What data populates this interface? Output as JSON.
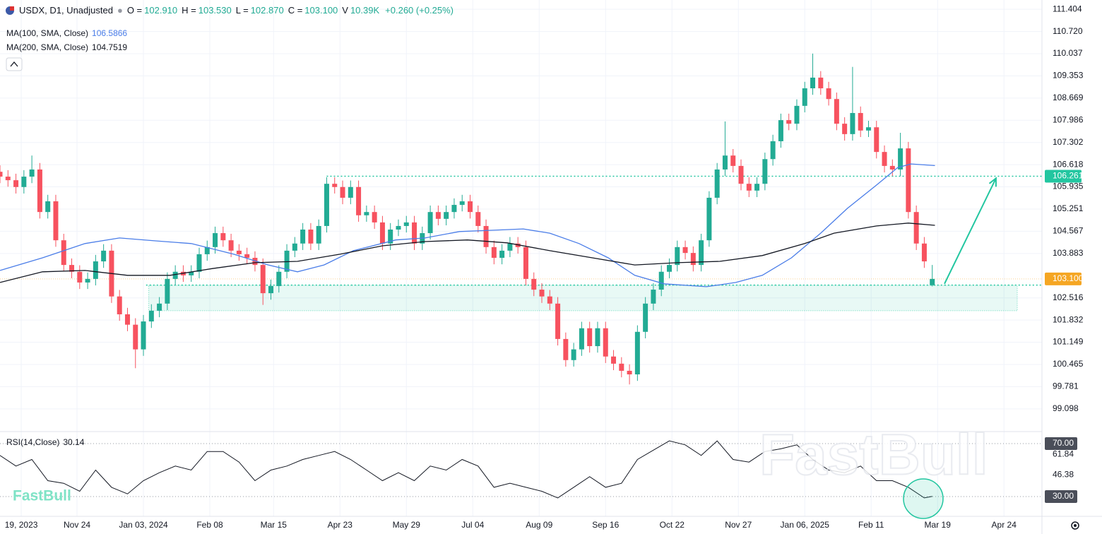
{
  "header": {
    "symbol": "USDX, D1, Unadjusted",
    "ohlc": [
      {
        "label": "O =",
        "value": "102.910"
      },
      {
        "label": "H =",
        "value": "103.530"
      },
      {
        "label": "L =",
        "value": "102.870"
      },
      {
        "label": "C =",
        "value": "103.100"
      },
      {
        "label": "V",
        "value": "10.39K"
      }
    ],
    "change": "+0.260 (+0.25%)"
  },
  "watermark": "FastBull",
  "chart_data": [
    {
      "type": "candlestick",
      "up_color": "#22ab94",
      "down_color": "#f7525f",
      "grid": true,
      "xlim": [
        0,
        392.3
      ],
      "ylim": [
        98.42,
        111.69
      ],
      "xticks": [
        {
          "value": 8,
          "label": "19, 2023"
        },
        {
          "value": 29,
          "label": "Nov 24"
        },
        {
          "value": 54,
          "label": "Jan 03, 2024"
        },
        {
          "value": 79,
          "label": "Feb 08"
        },
        {
          "value": 103,
          "label": "Mar 15"
        },
        {
          "value": 128,
          "label": "Apr 23"
        },
        {
          "value": 153,
          "label": "May 29"
        },
        {
          "value": 178,
          "label": "Jul 04"
        },
        {
          "value": 203,
          "label": "Aug 09"
        },
        {
          "value": 228,
          "label": "Sep 16"
        },
        {
          "value": 253,
          "label": "Oct 22"
        },
        {
          "value": 278,
          "label": "Nov 27"
        },
        {
          "value": 303,
          "label": "Jan 06, 2025"
        },
        {
          "value": 328,
          "label": "Feb 11"
        },
        {
          "value": 353,
          "label": "Mar 19"
        },
        {
          "value": 378,
          "label": "Apr 24"
        }
      ],
      "yticks": [
        111.404,
        {
          "value": 110.72,
          "label": "110.720"
        },
        110.037,
        109.353,
        108.669,
        107.986,
        107.302,
        106.618,
        105.935,
        105.251,
        104.567,
        103.883,
        102.516,
        101.832,
        101.149,
        100.465,
        99.781,
        99.098
      ],
      "x": [
        0,
        3,
        6,
        9,
        12,
        15,
        18,
        21,
        24,
        27,
        30,
        33,
        36,
        39,
        42,
        45,
        48,
        51,
        54,
        57,
        60,
        63,
        66,
        69,
        72,
        75,
        78,
        81,
        84,
        87,
        90,
        93,
        96,
        99,
        102,
        105,
        108,
        111,
        114,
        117,
        120,
        123,
        126,
        129,
        132,
        135,
        138,
        141,
        144,
        147,
        150,
        153,
        156,
        159,
        162,
        165,
        168,
        171,
        174,
        177,
        180,
        183,
        186,
        189,
        192,
        195,
        198,
        201,
        204,
        207,
        210,
        213,
        216,
        219,
        222,
        225,
        228,
        231,
        234,
        237,
        240,
        243,
        246,
        249,
        252,
        255,
        258,
        261,
        264,
        267,
        270,
        273,
        276,
        279,
        282,
        285,
        288,
        291,
        294,
        297,
        300,
        303,
        306,
        309,
        312,
        315,
        318,
        321,
        324,
        327,
        330,
        333,
        336,
        339,
        342,
        345,
        348,
        351
      ],
      "open": [
        106.4,
        106.25,
        106.14,
        105.93,
        106.25,
        106.47,
        105.16,
        105.49,
        104.29,
        103.53,
        103.32,
        102.99,
        103.1,
        103.64,
        103.97,
        102.56,
        102.01,
        101.69,
        100.93,
        101.79,
        102.12,
        102.34,
        103.1,
        103.32,
        103.21,
        103.32,
        103.86,
        104.08,
        104.51,
        104.29,
        103.97,
        103.86,
        103.75,
        103.53,
        102.66,
        102.88,
        103.32,
        103.97,
        104.19,
        104.62,
        104.19,
        104.73,
        106.03,
        105.93,
        105.6,
        105.93,
        105.06,
        105.16,
        104.84,
        104.19,
        104.62,
        104.73,
        104.84,
        104.19,
        104.51,
        105.16,
        104.95,
        105.16,
        105.38,
        105.49,
        105.16,
        104.73,
        104.08,
        103.75,
        103.97,
        104.19,
        104.08,
        103.1,
        102.77,
        102.56,
        102.34,
        101.25,
        100.6,
        100.93,
        101.58,
        101.03,
        101.58,
        100.71,
        100.49,
        100.27,
        100.16,
        101.47,
        102.34,
        102.77,
        103.32,
        103.53,
        104.08,
        103.9,
        103.53,
        104.29,
        105.6,
        106.47,
        106.9,
        106.58,
        106.03,
        105.82,
        106.03,
        106.79,
        107.34,
        107.99,
        107.88,
        108.43,
        108.97,
        109.3,
        108.97,
        108.64,
        107.88,
        107.56,
        108.21,
        107.67,
        107.77,
        107.01,
        106.58,
        106.47,
        107.12,
        105.16,
        104.19,
        102.91
      ],
      "high": [
        106.6,
        106.45,
        106.34,
        106.45,
        106.9,
        106.67,
        105.69,
        105.69,
        104.49,
        103.73,
        103.52,
        103.3,
        103.84,
        104.17,
        104.17,
        102.76,
        102.21,
        101.89,
        101.99,
        102.32,
        102.54,
        103.3,
        103.52,
        103.52,
        103.52,
        104.06,
        104.28,
        104.71,
        104.71,
        104.49,
        104.17,
        104.06,
        103.95,
        103.73,
        103.08,
        103.52,
        104.17,
        104.39,
        104.82,
        104.82,
        104.93,
        106.23,
        106.23,
        106.13,
        106.13,
        106.13,
        105.36,
        105.36,
        105.04,
        104.82,
        104.93,
        105.04,
        105.04,
        104.71,
        105.36,
        105.36,
        105.36,
        105.58,
        105.69,
        105.69,
        105.36,
        104.93,
        104.28,
        104.17,
        104.39,
        104.39,
        104.28,
        103.3,
        102.97,
        102.76,
        102.54,
        101.45,
        101.13,
        101.78,
        101.78,
        101.78,
        101.78,
        100.91,
        100.69,
        100.47,
        101.67,
        102.54,
        102.97,
        103.52,
        103.73,
        104.28,
        104.28,
        104.1,
        104.49,
        105.8,
        106.67,
        107.95,
        107.1,
        106.78,
        106.23,
        106.23,
        106.99,
        107.54,
        108.19,
        108.19,
        108.63,
        109.17,
        110.04,
        109.5,
        109.17,
        108.84,
        108.08,
        109.63,
        108.41,
        107.97,
        107.97,
        107.21,
        106.78,
        107.6,
        107.32,
        105.36,
        104.39,
        103.53
      ],
      "low": [
        106.05,
        105.94,
        105.73,
        105.73,
        106.05,
        104.96,
        104.96,
        104.09,
        103.33,
        103.12,
        102.79,
        102.79,
        102.9,
        103.44,
        102.36,
        101.81,
        101.49,
        100.35,
        100.73,
        101.59,
        101.92,
        102.14,
        102.9,
        103.01,
        103.01,
        103.12,
        103.66,
        103.88,
        104.09,
        103.77,
        103.66,
        103.55,
        103.33,
        102.3,
        102.46,
        102.68,
        103.12,
        103.77,
        103.99,
        103.99,
        103.99,
        104.53,
        105.73,
        105.4,
        105.4,
        104.86,
        104.86,
        104.64,
        103.99,
        103.99,
        104.42,
        104.53,
        103.99,
        103.99,
        104.31,
        104.75,
        104.75,
        104.96,
        105.18,
        104.96,
        104.53,
        103.88,
        103.55,
        103.55,
        103.77,
        103.88,
        102.9,
        102.57,
        102.36,
        102.14,
        101.05,
        100.4,
        100.4,
        100.73,
        100.83,
        100.83,
        100.51,
        100.29,
        100.07,
        99.85,
        99.96,
        101.27,
        102.14,
        102.57,
        103.12,
        103.33,
        103.7,
        103.33,
        103.33,
        104.09,
        105.4,
        106.27,
        106.38,
        105.83,
        105.62,
        105.62,
        105.83,
        106.59,
        107.14,
        107.68,
        107.68,
        108.23,
        108.77,
        108.77,
        108.44,
        107.68,
        107.36,
        107.36,
        107.47,
        107.47,
        106.81,
        106.38,
        106.27,
        106.27,
        104.96,
        103.99,
        103.44,
        102.87
      ],
      "close": [
        106.25,
        106.14,
        105.93,
        106.25,
        106.47,
        105.16,
        105.49,
        104.29,
        103.53,
        103.32,
        102.99,
        103.1,
        103.64,
        103.97,
        102.56,
        102.01,
        101.69,
        100.93,
        101.79,
        102.12,
        102.34,
        103.1,
        103.32,
        103.21,
        103.32,
        103.86,
        104.08,
        104.51,
        104.29,
        103.97,
        103.86,
        103.75,
        103.53,
        102.66,
        102.88,
        103.32,
        103.97,
        104.19,
        104.62,
        104.19,
        104.73,
        106.03,
        105.93,
        105.6,
        105.93,
        105.06,
        105.16,
        104.84,
        104.19,
        104.62,
        104.73,
        104.84,
        104.19,
        104.51,
        105.16,
        104.95,
        105.16,
        105.38,
        105.49,
        105.16,
        104.73,
        104.08,
        103.75,
        103.97,
        104.19,
        104.08,
        103.1,
        102.77,
        102.56,
        102.34,
        101.25,
        100.6,
        100.93,
        101.58,
        101.03,
        101.58,
        100.71,
        100.49,
        100.27,
        100.16,
        101.47,
        102.34,
        102.77,
        103.32,
        103.53,
        104.08,
        103.9,
        103.53,
        104.29,
        105.6,
        106.47,
        106.9,
        106.58,
        106.03,
        105.82,
        106.03,
        106.79,
        107.34,
        107.99,
        107.88,
        108.43,
        108.97,
        109.3,
        108.97,
        108.64,
        107.88,
        107.56,
        108.21,
        107.67,
        107.77,
        107.01,
        106.58,
        106.47,
        107.12,
        105.16,
        104.19,
        103.64,
        103.1
      ],
      "series": [
        {
          "name": "MA(100, SMA, Close)",
          "label": "106.5866",
          "color": "#4a7de8",
          "x": [
            0,
            16,
            32,
            45,
            59,
            72,
            88,
            101,
            112,
            122,
            133,
            149,
            160,
            173,
            186,
            197,
            207,
            218,
            229,
            239,
            250,
            266,
            277,
            287,
            298,
            309,
            319,
            330,
            338,
            343,
            352
          ],
          "values": [
            103.36,
            103.75,
            104.19,
            104.36,
            104.27,
            104.19,
            103.86,
            103.53,
            103.32,
            103.53,
            103.97,
            104.3,
            104.36,
            104.56,
            104.6,
            104.64,
            104.51,
            104.19,
            103.75,
            103.21,
            102.95,
            102.86,
            102.99,
            103.21,
            103.75,
            104.51,
            105.27,
            105.99,
            106.53,
            106.64,
            106.59
          ]
        },
        {
          "name": "MA(200, SMA, Close)",
          "label": "104.7519",
          "color": "#131722",
          "x": [
            0,
            16,
            32,
            48,
            64,
            80,
            96,
            112,
            128,
            144,
            160,
            176,
            191,
            207,
            223,
            239,
            255,
            271,
            287,
            303,
            314,
            330,
            342,
            352
          ],
          "values": [
            102.99,
            103.32,
            103.36,
            103.21,
            103.21,
            103.42,
            103.6,
            103.64,
            103.86,
            104.12,
            104.25,
            104.3,
            104.21,
            103.97,
            103.75,
            103.53,
            103.6,
            103.64,
            103.82,
            104.19,
            104.51,
            104.73,
            104.82,
            104.75
          ]
        }
      ],
      "price_lines": [
        {
          "value": 106.261,
          "color": "#22c6a0",
          "from": 123
        },
        {
          "value": 102.91,
          "color": "#22c6a0",
          "from": 55
        }
      ],
      "last_price": {
        "value": 103.1,
        "label": "103.100",
        "color": "#f5a623"
      },
      "zone": {
        "x": [
          56,
          383
        ],
        "y": [
          102.12,
          102.9
        ],
        "color": "#22c6a0"
      },
      "arrow": {
        "x": [
          355.6,
          375
        ],
        "y": [
          102.95,
          106.2
        ],
        "color": "#22c6a0"
      }
    },
    {
      "type": "line",
      "title": "RSI(14,Close)",
      "last_value": 30.14,
      "color": "#131722",
      "xlim": [
        0,
        392.3
      ],
      "ylim": [
        15.6,
        78.5
      ],
      "yticks": [
        {
          "value": 70,
          "label": "70.00"
        },
        61.84,
        46.38,
        {
          "value": 30,
          "label": "30.00"
        }
      ],
      "x": [
        0,
        6,
        12,
        18,
        24,
        30,
        36,
        42,
        48,
        54,
        60,
        66,
        72,
        78,
        84,
        90,
        96,
        102,
        108,
        114,
        120,
        126,
        132,
        138,
        144,
        150,
        156,
        162,
        168,
        174,
        180,
        186,
        192,
        198,
        204,
        210,
        216,
        222,
        228,
        234,
        240,
        246,
        252,
        258,
        264,
        270,
        276,
        282,
        288,
        294,
        300,
        306,
        312,
        318,
        324,
        330,
        336,
        342,
        348,
        351
      ],
      "values": [
        61,
        53,
        58,
        42,
        40,
        34,
        50,
        37,
        32,
        42,
        48,
        53,
        50,
        64,
        64,
        56,
        42,
        50,
        53,
        58,
        61,
        64,
        58,
        50,
        42,
        48,
        42,
        53,
        50,
        58,
        53,
        37,
        40,
        37,
        34,
        29,
        37,
        45,
        37,
        40,
        58,
        65,
        72,
        69,
        61,
        72,
        58,
        56,
        64,
        66,
        69,
        58,
        50,
        48,
        53,
        42,
        42,
        37,
        29,
        30.14
      ]
    }
  ]
}
